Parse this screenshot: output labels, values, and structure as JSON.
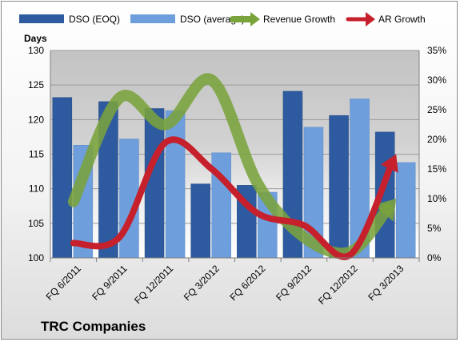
{
  "chart_data": {
    "type": "bar",
    "categories": [
      "FQ 6/2011",
      "FQ 9/2011",
      "FQ 12/2011",
      "FQ 3/2012",
      "FQ 6/2012",
      "FQ 9/2012",
      "FQ 12/2012",
      "FQ 3/2013"
    ],
    "series": [
      {
        "name": "DSO (EOQ)",
        "kind": "bar",
        "axis": "left",
        "color": "#2e5aa0",
        "values": [
          123.2,
          122.6,
          121.6,
          110.7,
          110.5,
          124.1,
          120.6,
          118.2
        ]
      },
      {
        "name": "DSO (average)",
        "kind": "bar",
        "axis": "left",
        "color": "#6e9edb",
        "values": [
          116.3,
          117.2,
          121.3,
          115.2,
          109.5,
          118.9,
          123.0,
          113.8
        ]
      },
      {
        "name": "Revenue Growth",
        "kind": "line",
        "axis": "right",
        "color": "#7aa33c",
        "values": [
          9.5,
          27.0,
          22.5,
          30.0,
          12.5,
          3.5,
          1.0,
          10.0
        ]
      },
      {
        "name": "AR Growth",
        "kind": "line",
        "axis": "right",
        "color": "#c5202b",
        "values": [
          2.5,
          3.5,
          19.5,
          15.0,
          7.5,
          5.5,
          0.5,
          17.5
        ]
      }
    ],
    "y_left": {
      "title": "Days",
      "min": 100,
      "max": 130,
      "ticks": [
        "100",
        "105",
        "110",
        "115",
        "120",
        "125",
        "130"
      ]
    },
    "y_right": {
      "min": 0,
      "max": 35,
      "ticks": [
        "0%",
        "5%",
        "10%",
        "15%",
        "20%",
        "25%",
        "30%",
        "35%"
      ]
    },
    "grid": true,
    "legend": "top"
  },
  "footer": {
    "company": "TRC Companies"
  }
}
